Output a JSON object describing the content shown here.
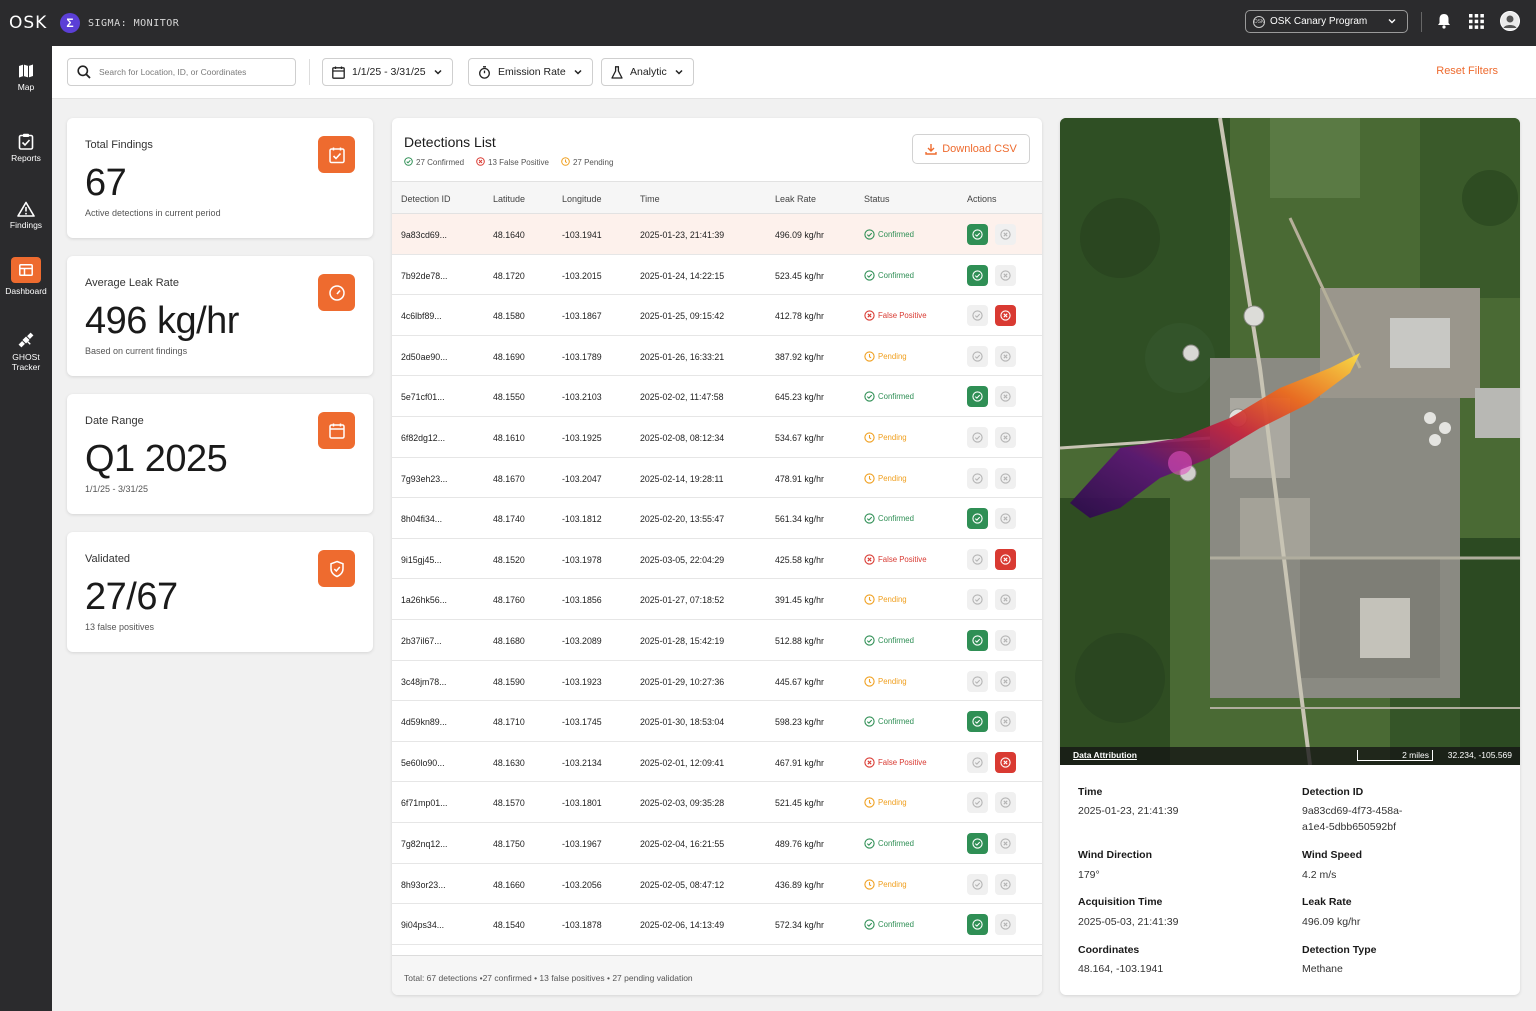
{
  "topbar": {
    "brand": "OSK",
    "app_badge": "Σ",
    "app_name": "SIGMA: MONITOR",
    "program": "OSK Canary Program",
    "program_logo": "OSK"
  },
  "nav": {
    "items": [
      {
        "label": "Map",
        "icon": "map-icon"
      },
      {
        "label": "Reports",
        "icon": "clipboard-icon"
      },
      {
        "label": "Findings",
        "icon": "warning-icon"
      },
      {
        "label": "Dashboard",
        "icon": "dashboard-icon",
        "active": true
      },
      {
        "label": "GHOSt Tracker",
        "icon": "satellite-icon"
      }
    ]
  },
  "filters": {
    "search_placeholder": "Search for Location, ID, or Coordinates",
    "date_range": "1/1/25 - 3/31/25",
    "emission": "Emission Rate",
    "analytic": "Analytic",
    "reset": "Reset Filters"
  },
  "stats": [
    {
      "title": "Total Findings",
      "value": "67",
      "sub": "Active detections in current period",
      "icon": "checklist-icon"
    },
    {
      "title": "Average Leak Rate",
      "value": "496 kg/hr",
      "sub": "Based on current findings",
      "icon": "gauge-icon"
    },
    {
      "title": "Date Range",
      "value": "Q1 2025",
      "sub": "1/1/25 - 3/31/25",
      "icon": "calendar-icon"
    },
    {
      "title": "Validated",
      "value": "27/67",
      "sub": "13 false positives",
      "icon": "shield-check-icon"
    }
  ],
  "detections": {
    "title": "Detections List",
    "legend_confirmed": "27 Confirmed",
    "legend_false": "13 False Positive",
    "legend_pending": "27 Pending",
    "download": "Download CSV",
    "columns": [
      "Detection ID",
      "Latitude",
      "Longitude",
      "Time",
      "Leak Rate",
      "Status",
      "Actions"
    ],
    "rows": [
      {
        "id": "9a83cd69...",
        "lat": "48.1640",
        "lon": "-103.1941",
        "time": "2025-01-23, 21:41:39",
        "rate": "496.09 kg/hr",
        "status": "Confirmed"
      },
      {
        "id": "7b92de78...",
        "lat": "48.1720",
        "lon": "-103.2015",
        "time": "2025-01-24, 14:22:15",
        "rate": "523.45 kg/hr",
        "status": "Confirmed"
      },
      {
        "id": "4c6lbf89...",
        "lat": "48.1580",
        "lon": "-103.1867",
        "time": "2025-01-25, 09:15:42",
        "rate": "412.78 kg/hr",
        "status": "False Positive"
      },
      {
        "id": "2d50ae90...",
        "lat": "48.1690",
        "lon": "-103.1789",
        "time": "2025-01-26, 16:33:21",
        "rate": "387.92 kg/hr",
        "status": "Pending"
      },
      {
        "id": "5e71cf01...",
        "lat": "48.1550",
        "lon": "-103.2103",
        "time": "2025-02-02, 11:47:58",
        "rate": "645.23 kg/hr",
        "status": "Confirmed"
      },
      {
        "id": "6f82dg12...",
        "lat": "48.1610",
        "lon": "-103.1925",
        "time": "2025-02-08, 08:12:34",
        "rate": "534.67 kg/hr",
        "status": "Pending"
      },
      {
        "id": "7g93eh23...",
        "lat": "48.1670",
        "lon": "-103.2047",
        "time": "2025-02-14, 19:28:11",
        "rate": "478.91 kg/hr",
        "status": "Pending"
      },
      {
        "id": "8h04fi34...",
        "lat": "48.1740",
        "lon": "-103.1812",
        "time": "2025-02-20, 13:55:47",
        "rate": "561.34 kg/hr",
        "status": "Confirmed"
      },
      {
        "id": "9i15gj45...",
        "lat": "48.1520",
        "lon": "-103.1978",
        "time": "2025-03-05, 22:04:29",
        "rate": "425.58 kg/hr",
        "status": "False Positive"
      },
      {
        "id": "1a26hk56...",
        "lat": "48.1760",
        "lon": "-103.1856",
        "time": "2025-01-27, 07:18:52",
        "rate": "391.45 kg/hr",
        "status": "Pending"
      },
      {
        "id": "2b37il67...",
        "lat": "48.1680",
        "lon": "-103.2089",
        "time": "2025-01-28, 15:42:19",
        "rate": "512.88 kg/hr",
        "status": "Confirmed"
      },
      {
        "id": "3c48jm78...",
        "lat": "48.1590",
        "lon": "-103.1923",
        "time": "2025-01-29, 10:27:36",
        "rate": "445.67 kg/hr",
        "status": "Pending"
      },
      {
        "id": "4d59kn89...",
        "lat": "48.1710",
        "lon": "-103.1745",
        "time": "2025-01-30, 18:53:04",
        "rate": "598.23 kg/hr",
        "status": "Confirmed"
      },
      {
        "id": "5e60lo90...",
        "lat": "48.1630",
        "lon": "-103.2134",
        "time": "2025-02-01, 12:09:41",
        "rate": "467.91 kg/hr",
        "status": "False Positive"
      },
      {
        "id": "6f71mp01...",
        "lat": "48.1570",
        "lon": "-103.1801",
        "time": "2025-02-03, 09:35:28",
        "rate": "521.45 kg/hr",
        "status": "Pending"
      },
      {
        "id": "7g82nq12...",
        "lat": "48.1750",
        "lon": "-103.1967",
        "time": "2025-02-04, 16:21:55",
        "rate": "489.76 kg/hr",
        "status": "Confirmed"
      },
      {
        "id": "8h93or23...",
        "lat": "48.1660",
        "lon": "-103.2056",
        "time": "2025-02-05, 08:47:12",
        "rate": "436.89 kg/hr",
        "status": "Pending"
      },
      {
        "id": "9i04ps34...",
        "lat": "48.1540",
        "lon": "-103.1878",
        "time": "2025-02-06, 14:13:49",
        "rate": "572.34 kg/hr",
        "status": "Confirmed"
      }
    ],
    "footer": "Total: 67 detections •27 confirmed • 13 false positives • 27 pending validation"
  },
  "map": {
    "attribution": "Data Attribution",
    "scale": "2 miles",
    "coords": "32.234, -105.569"
  },
  "details": {
    "time_label": "Time",
    "time": "2025-01-23, 21:41:39",
    "id_label": "Detection ID",
    "id_line1": "9a83cd69-4f73-458a-",
    "id_line2": "a1e4-5dbb650592bf",
    "wind_dir_label": "Wind Direction",
    "wind_dir": "179°",
    "wind_speed_label": "Wind Speed",
    "wind_speed": "4.2 m/s",
    "acq_label": "Acquisition Time",
    "acq": "2025-05-03, 21:41:39",
    "leak_label": "Leak Rate",
    "leak": "496.09 kg/hr",
    "coord_label": "Coordinates",
    "coord": "48.164, -103.1941",
    "type_label": "Detection Type",
    "type": "Methane"
  },
  "colors": {
    "accent": "#ee6b2f",
    "confirmed": "#2f8f55",
    "false_positive": "#d93a32",
    "pending": "#f0a020"
  }
}
